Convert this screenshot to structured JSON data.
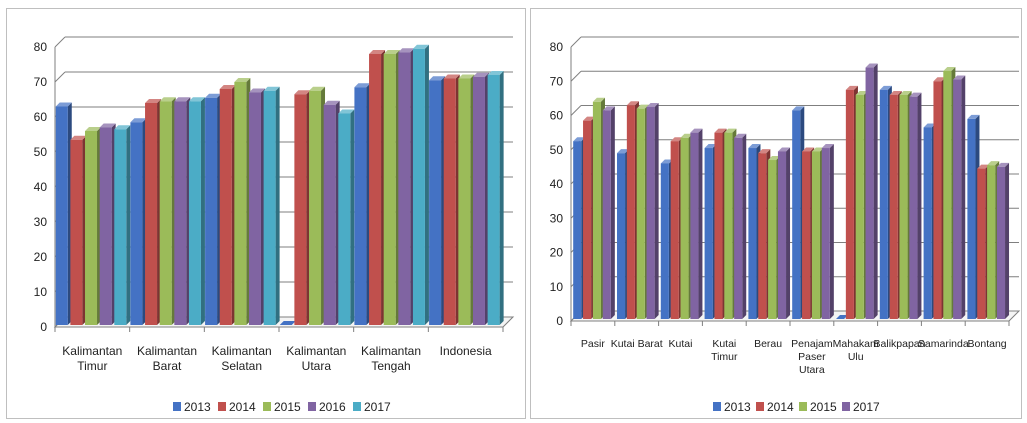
{
  "chart_data": [
    {
      "type": "bar",
      "title": "",
      "xlabel": "",
      "ylabel": "",
      "ylim": [
        0,
        80
      ],
      "yticks": [
        0,
        10,
        20,
        30,
        40,
        50,
        60,
        70,
        80
      ],
      "grid": true,
      "legend_position": "bottom",
      "categories": [
        [
          "Kalimantan",
          "Timur"
        ],
        [
          "Kalimantan",
          "Barat"
        ],
        [
          "Kalimantan",
          "Selatan"
        ],
        [
          "Kalimantan",
          "Utara"
        ],
        [
          "Kalimantan",
          "Tengah"
        ],
        [
          "Indonesia"
        ]
      ],
      "series": [
        {
          "name": "2013",
          "color": "#4472C4",
          "values": [
            63,
            58.5,
            65.5,
            0,
            68.5,
            70.5
          ]
        },
        {
          "name": "2014",
          "color": "#C0504D",
          "values": [
            53.5,
            64,
            68,
            66.5,
            78,
            71
          ]
        },
        {
          "name": "2015",
          "color": "#9BBB59",
          "values": [
            56,
            64.5,
            70,
            67.5,
            78,
            71
          ]
        },
        {
          "name": "2016",
          "color": "#8064A2",
          "values": [
            57,
            64.5,
            67,
            63.5,
            78.5,
            71.5
          ]
        },
        {
          "name": "2017",
          "color": "#4BACC6",
          "values": [
            56.5,
            64.5,
            67.5,
            61,
            79.5,
            72
          ]
        }
      ]
    },
    {
      "type": "bar",
      "title": "",
      "xlabel": "",
      "ylabel": "",
      "ylim": [
        0,
        80
      ],
      "yticks": [
        0,
        10,
        20,
        30,
        40,
        50,
        60,
        70,
        80
      ],
      "grid": true,
      "legend_position": "bottom",
      "categories": [
        [
          "Pasir"
        ],
        [
          "Kutai Barat"
        ],
        [
          "Kutai"
        ],
        [
          "Kutai",
          "Timur"
        ],
        [
          "Berau"
        ],
        [
          "Penajam",
          "Paser",
          "Utara"
        ],
        [
          "Mahakam",
          "Ulu"
        ],
        [
          "Balikpapan"
        ],
        [
          "Samarinda"
        ],
        [
          "Bontang"
        ]
      ],
      "series": [
        {
          "name": "2013",
          "color": "#4472C4",
          "values": [
            52.5,
            49,
            46,
            50.5,
            50.5,
            61.5,
            0,
            67.5,
            56.5,
            59
          ]
        },
        {
          "name": "2014",
          "color": "#C0504D",
          "values": [
            58.5,
            63,
            52.5,
            55,
            49,
            49.5,
            67.5,
            66,
            70,
            44.5
          ]
        },
        {
          "name": "2015",
          "color": "#9BBB59",
          "values": [
            64,
            62,
            53.5,
            55,
            47,
            49.5,
            66,
            66,
            73,
            45.5
          ]
        },
        {
          "name": "2017",
          "color": "#8064A2",
          "values": [
            61.5,
            62.5,
            55,
            53.5,
            49.5,
            50.5,
            74,
            65.5,
            70.5,
            45
          ]
        }
      ]
    }
  ]
}
